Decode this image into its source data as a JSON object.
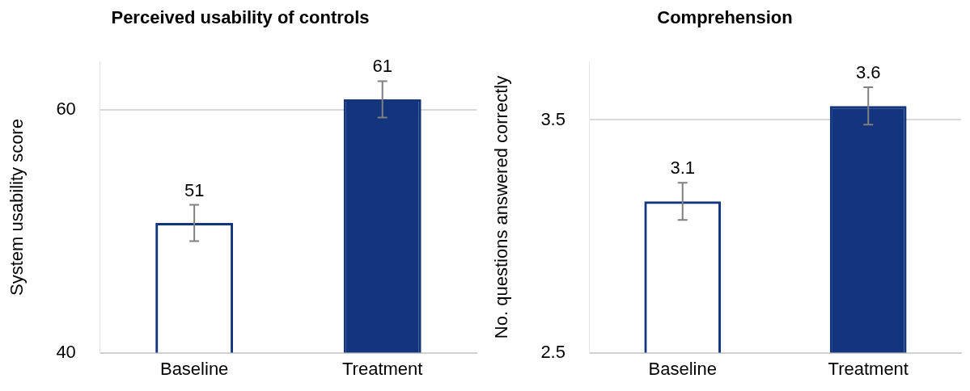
{
  "chart_data": [
    {
      "type": "bar",
      "title": "Perceived usability of controls",
      "ylabel": "System usability score",
      "categories": [
        "Baseline",
        "Treatment"
      ],
      "values": [
        50.7,
        60.9
      ],
      "errors": [
        1.5,
        1.5
      ],
      "value_labels": [
        "51",
        "61"
      ],
      "colors": [
        "#12357e",
        "#12357e"
      ],
      "ylim": [
        40,
        64
      ],
      "yticks": [
        40,
        60
      ],
      "grid": "y",
      "legend": false
    },
    {
      "type": "bar",
      "title": "Comprehension",
      "ylabel": "No. questions answered correctly",
      "categories": [
        "Baseline",
        "Treatment"
      ],
      "values": [
        3.15,
        3.56
      ],
      "errors": [
        0.08,
        0.08
      ],
      "value_labels": [
        "3.1",
        "3.6"
      ],
      "colors": [
        "#12357e",
        "#12357e"
      ],
      "ylim": [
        2.5,
        3.75
      ],
      "yticks": [
        2.5,
        3.5
      ],
      "grid": "y",
      "legend": false
    }
  ]
}
